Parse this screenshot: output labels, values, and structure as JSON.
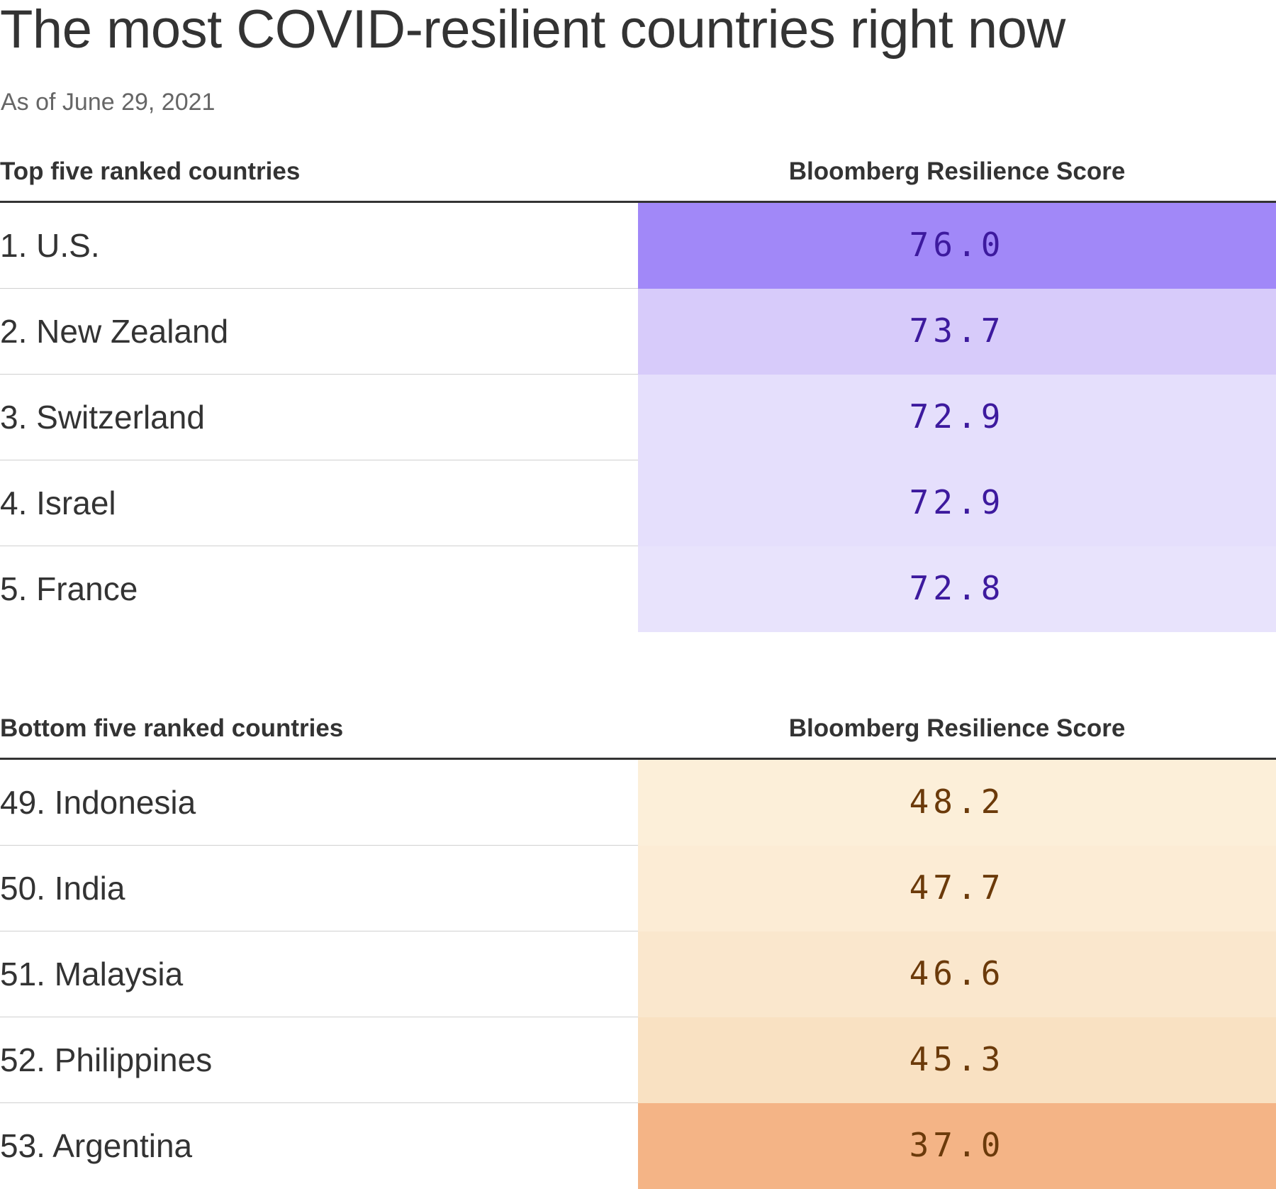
{
  "title": "The most COVID-resilient countries right now",
  "subtitle": "As of June 29, 2021",
  "colors": {
    "text": "#333333",
    "subtitle": "#666666",
    "top_score_text": "#3d1a9e",
    "bottom_score_text": "#6b3a0a"
  },
  "chart_data": [
    {
      "type": "table",
      "header": {
        "label": "Top five ranked countries",
        "score": "Bloomberg Resilience Score"
      },
      "rows": [
        {
          "label": "1. U.S.",
          "value": "76.0",
          "fill": "#a188f8"
        },
        {
          "label": "2. New Zealand",
          "value": "73.7",
          "fill": "#d7cbfa"
        },
        {
          "label": "3. Switzerland",
          "value": "72.9",
          "fill": "#e5dffc"
        },
        {
          "label": "4. Israel",
          "value": "72.9",
          "fill": "#e5dffc"
        },
        {
          "label": "5. France",
          "value": "72.8",
          "fill": "#e8e3fc"
        }
      ]
    },
    {
      "type": "table",
      "header": {
        "label": "Bottom five ranked countries",
        "score": "Bloomberg Resilience Score"
      },
      "rows": [
        {
          "label": "49. Indonesia",
          "value": "48.2",
          "fill": "#fcefd9"
        },
        {
          "label": "50. India",
          "value": "47.7",
          "fill": "#fcecd5"
        },
        {
          "label": "51. Malaysia",
          "value": "46.6",
          "fill": "#fae7cd"
        },
        {
          "label": "52. Philippines",
          "value": "45.3",
          "fill": "#f9e1c2"
        },
        {
          "label": "53. Argentina",
          "value": "37.0",
          "fill": "#f4b486"
        }
      ]
    }
  ]
}
